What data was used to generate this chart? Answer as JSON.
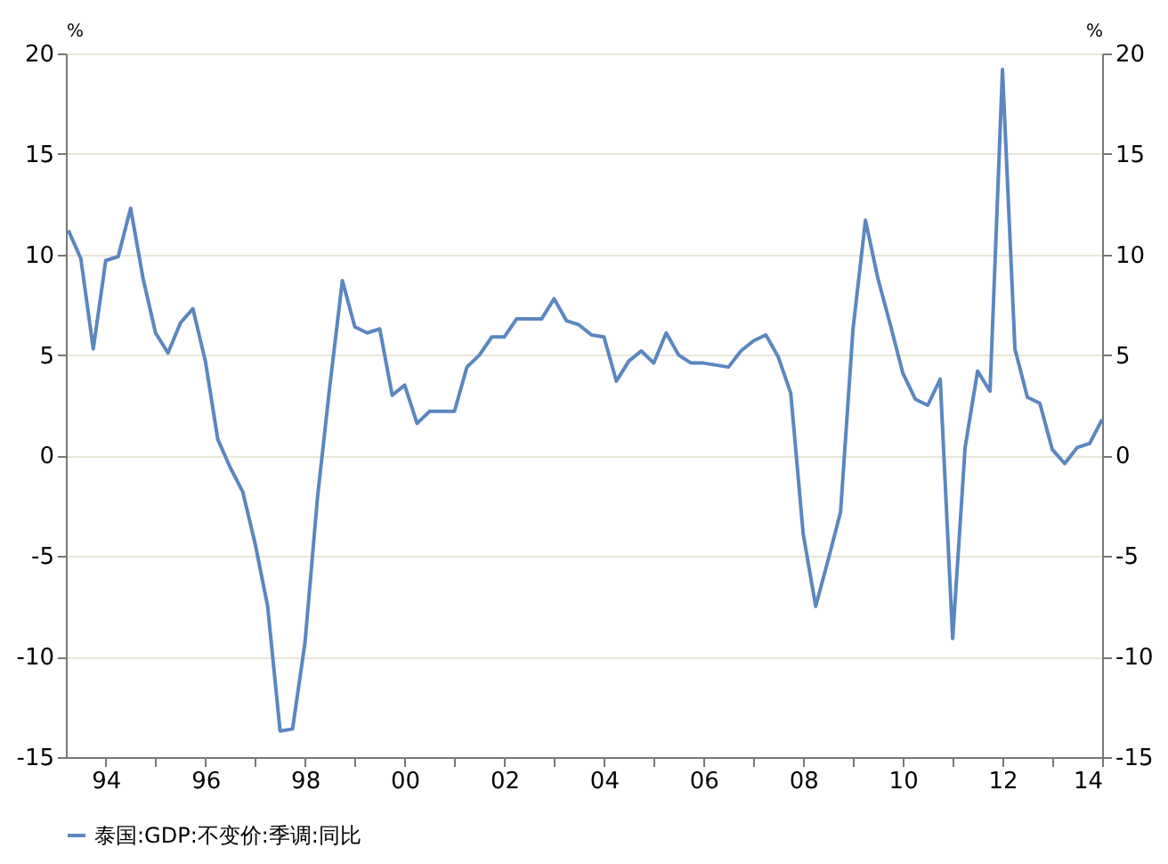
{
  "chart_data": {
    "type": "line",
    "ylabel": "%",
    "y2label": "%",
    "x": [
      1993.25,
      1993.5,
      1993.75,
      1994.0,
      1994.25,
      1994.5,
      1994.75,
      1995.0,
      1995.25,
      1995.5,
      1995.75,
      1996.0,
      1996.25,
      1996.5,
      1996.75,
      1997.0,
      1997.25,
      1997.5,
      1997.75,
      1998.0,
      1998.25,
      1998.5,
      1998.75,
      1999.0,
      1999.25,
      1999.5,
      1999.75,
      2000.0,
      2000.25,
      2000.5,
      2000.75,
      2001.0,
      2001.25,
      2001.5,
      2001.75,
      2002.0,
      2002.25,
      2002.5,
      2002.75,
      2003.0,
      2003.25,
      2003.5,
      2003.75,
      2004.0,
      2004.25,
      2004.5,
      2004.75,
      2005.0,
      2005.25,
      2005.5,
      2005.75,
      2006.0,
      2006.25,
      2006.5,
      2006.75,
      2007.0,
      2007.25,
      2007.5,
      2007.75,
      2008.0,
      2008.25,
      2008.5,
      2008.75,
      2009.0,
      2009.25,
      2009.5,
      2009.75,
      2010.0,
      2010.25,
      2010.5,
      2010.75,
      2011.0,
      2011.25,
      2011.5,
      2011.75,
      2012.0,
      2012.25,
      2012.5,
      2012.75,
      2013.0,
      2013.25,
      2013.5,
      2013.75,
      2014.0
    ],
    "series": [
      {
        "name": "泰国:GDP:不变价:季调:同比",
        "color": "#5b87c0",
        "values": [
          11.2,
          9.8,
          5.3,
          9.7,
          9.9,
          12.3,
          8.8,
          6.1,
          5.1,
          6.6,
          7.3,
          4.7,
          0.8,
          -0.6,
          -1.8,
          -4.4,
          -7.5,
          -13.7,
          -13.6,
          -9.3,
          -2.1,
          3.5,
          8.7,
          6.4,
          6.1,
          6.3,
          3.0,
          3.5,
          1.6,
          2.2,
          2.2,
          2.2,
          4.4,
          5.0,
          5.9,
          5.9,
          6.8,
          6.8,
          6.8,
          7.8,
          6.7,
          6.5,
          6.0,
          5.9,
          3.7,
          4.7,
          5.2,
          4.6,
          6.1,
          5.0,
          4.6,
          4.6,
          4.5,
          4.4,
          5.2,
          5.7,
          6.0,
          4.9,
          3.1,
          -3.9,
          -7.5,
          -5.2,
          -2.8,
          6.3,
          11.7,
          8.8,
          6.5,
          4.1,
          2.8,
          2.5,
          3.8,
          -9.1,
          0.4,
          4.2,
          3.2,
          19.2,
          5.3,
          2.9,
          2.6,
          0.3,
          -0.4,
          0.4,
          0.6,
          1.8
        ]
      }
    ],
    "xlim": [
      1993.2,
      2014.0
    ],
    "xticks": [
      {
        "value": 1994,
        "label": "94"
      },
      {
        "value": 1995,
        "label": null
      },
      {
        "value": 1996,
        "label": "96"
      },
      {
        "value": 1997,
        "label": null
      },
      {
        "value": 1998,
        "label": "98"
      },
      {
        "value": 1999,
        "label": null
      },
      {
        "value": 2000,
        "label": "00"
      },
      {
        "value": 2001,
        "label": null
      },
      {
        "value": 2002,
        "label": "02"
      },
      {
        "value": 2003,
        "label": null
      },
      {
        "value": 2004,
        "label": "04"
      },
      {
        "value": 2005,
        "label": null
      },
      {
        "value": 2006,
        "label": "06"
      },
      {
        "value": 2007,
        "label": null
      },
      {
        "value": 2008,
        "label": "08"
      },
      {
        "value": 2009,
        "label": null
      },
      {
        "value": 2010,
        "label": "10"
      },
      {
        "value": 2011,
        "label": null
      },
      {
        "value": 2012,
        "label": "12"
      },
      {
        "value": 2013,
        "label": null
      },
      {
        "value": 2014,
        "label": "14"
      }
    ],
    "ylim": [
      -15,
      20
    ],
    "yticks": [
      -15,
      -10,
      -5,
      0,
      5,
      10,
      15,
      20
    ],
    "y2lim": [
      -15,
      20
    ],
    "y2ticks": [
      -15,
      -10,
      -5,
      0,
      5,
      10,
      15,
      20
    ],
    "grid": "y",
    "legend": "bottom"
  }
}
